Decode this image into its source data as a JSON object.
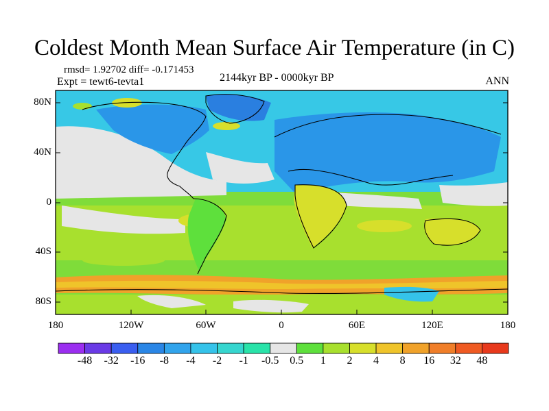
{
  "title": "Coldest Month Mean Surface Air Temperature (in C)",
  "stats_text": "rmsd= 1.92702 diff= -0.171453",
  "experiment_text": "Expt = tewt6-tevta1",
  "period_text": "2144kyr BP - 0000kyr BP",
  "season_text": "ANN",
  "lat_ticks": [
    "80N",
    "40N",
    "0",
    "40S",
    "80S"
  ],
  "lon_ticks": [
    "180",
    "120W",
    "60W",
    "0",
    "60E",
    "120E",
    "180"
  ],
  "colorbar": {
    "labels": [
      "-48",
      "-32",
      "-16",
      "-8",
      "-4",
      "-2",
      "-1",
      "-0.5",
      "0.5",
      "1",
      "2",
      "4",
      "8",
      "16",
      "32",
      "48"
    ],
    "colors": [
      "#9b2ef0",
      "#6a3ae6",
      "#3a5ef0",
      "#2a86e6",
      "#31a4ec",
      "#35c3ea",
      "#36d6cf",
      "#29e3a9",
      "#e6e6e6",
      "#5ee03c",
      "#a8e02e",
      "#d7df2b",
      "#efc42a",
      "#f0a22a",
      "#f07e29",
      "#ef5a22",
      "#e8391c"
    ]
  },
  "colors": {
    "ocean_cold": "#37c8e6",
    "land_cold": "#2a96e8",
    "neutral": "#e6e6e6",
    "tropics": "#a8e02e",
    "southern": "#7fdc3a",
    "antarctic_warm": "#f0a22a"
  }
}
